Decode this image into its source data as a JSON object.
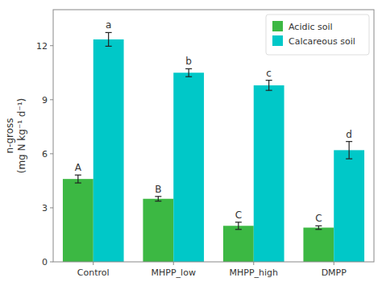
{
  "chart_data": {
    "type": "bar",
    "categories": [
      "Control",
      "MHPP_low",
      "MHPP_high",
      "DMPP"
    ],
    "series": [
      {
        "name": "Acidic soil",
        "color": "#3cb843",
        "values": [
          4.6,
          3.5,
          2.0,
          1.9
        ],
        "errors": [
          0.22,
          0.13,
          0.2,
          0.1
        ],
        "annotations": [
          "A",
          "B",
          "C",
          "C"
        ]
      },
      {
        "name": "Calcareous soil",
        "color": "#00c8c8",
        "values": [
          12.35,
          10.5,
          9.8,
          6.2
        ],
        "errors": [
          0.38,
          0.22,
          0.28,
          0.48
        ],
        "annotations": [
          "a",
          "b",
          "c",
          "d"
        ]
      }
    ],
    "ylabel": [
      "n-gross",
      "(mg N kg⁻¹ d⁻¹)"
    ],
    "ylim": [
      0,
      14.0
    ],
    "yticks": [
      0,
      3,
      6,
      9,
      12
    ],
    "grid": false,
    "legend": "upper right"
  }
}
